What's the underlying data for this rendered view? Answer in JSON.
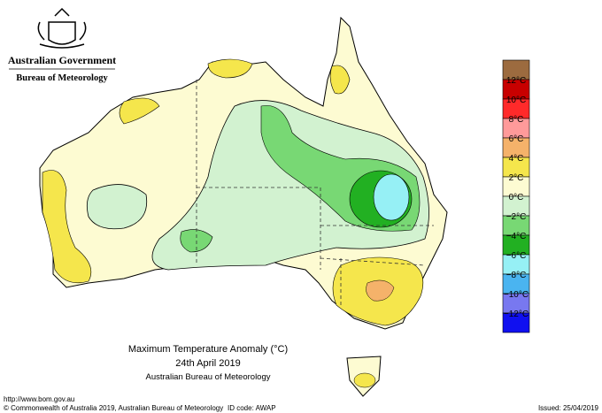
{
  "header": {
    "government": "Australian Government",
    "agency": "Bureau of Meteorology"
  },
  "map": {
    "title": "Maximum Temperature Anomaly (°C)",
    "date": "24th April 2019",
    "source": "Australian Bureau of Meteorology"
  },
  "legend": {
    "labels": [
      "12°C",
      "10°C",
      "8°C",
      "6°C",
      "4°C",
      "2°C",
      "0°C",
      "−2°C",
      "−4°C",
      "−6°C",
      "−8°C",
      "−10°C",
      "−12°C"
    ],
    "colors": [
      "#9c6b3f",
      "#c80000",
      "#ff2a2a",
      "#ff9a9a",
      "#f5b26a",
      "#f5e64c",
      "#fdfbd2",
      "#d2f2d0",
      "#78d874",
      "#22b022",
      "#96f0f5",
      "#4ab4f0",
      "#7878f0",
      "#1010f0"
    ]
  },
  "footer": {
    "url": "http://www.bom.gov.au",
    "copyright": "© Commonwealth of Australia 2019, Australian Bureau of Meteorology",
    "id_code": "ID code: AWAP",
    "issued": "Issued: 25/04/2019"
  }
}
